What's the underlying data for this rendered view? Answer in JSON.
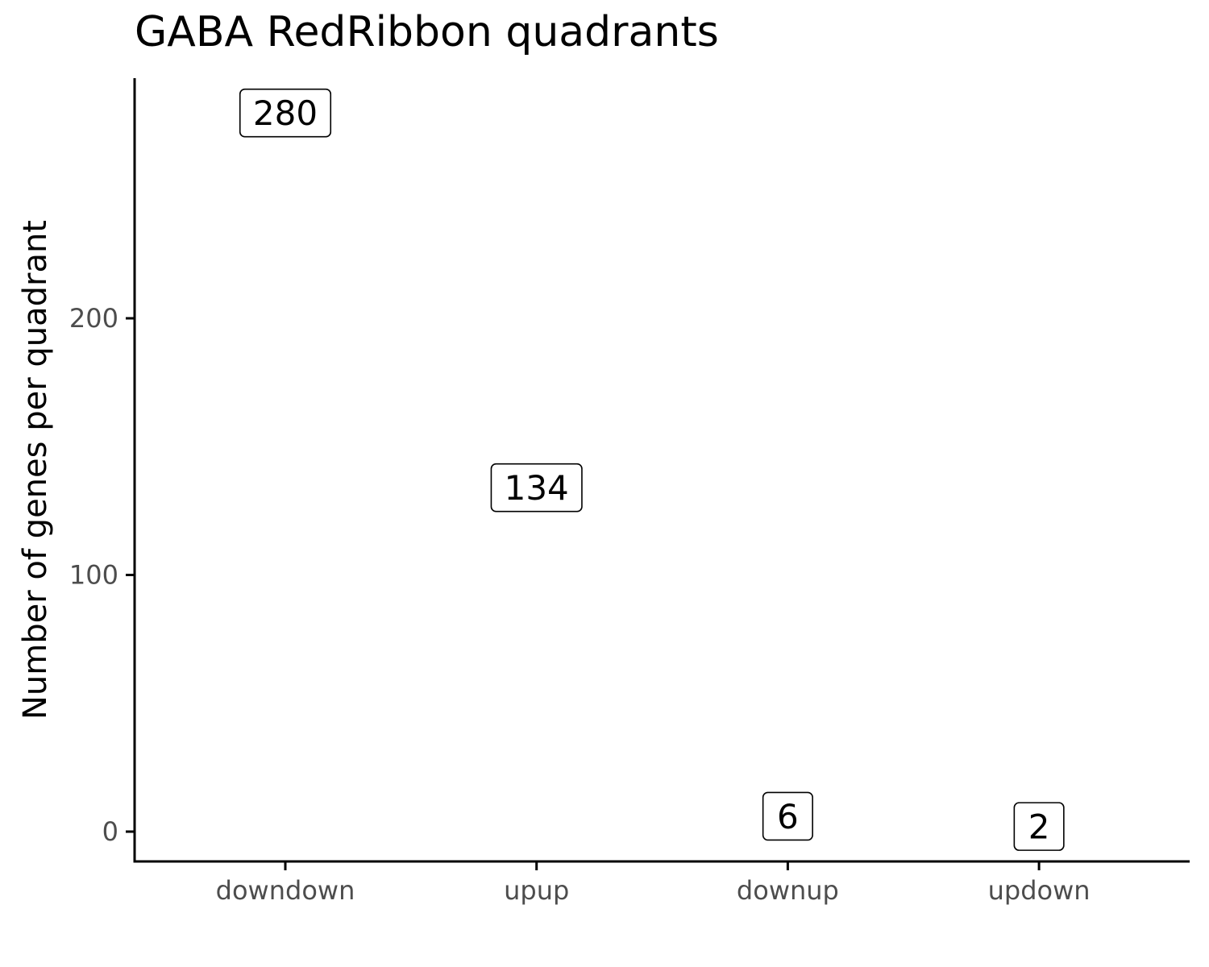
{
  "chart_data": {
    "type": "scatter",
    "title": "GABA RedRibbon quadrants",
    "xlabel": "",
    "ylabel": "Number of genes per quadrant",
    "categories": [
      "downdown",
      "upup",
      "downup",
      "updown"
    ],
    "values": [
      280,
      134,
      6,
      2
    ],
    "labels": [
      "280",
      "134",
      "6",
      "2"
    ],
    "ylim": [
      -12,
      294
    ],
    "yticks": [
      0,
      100,
      200
    ],
    "grid": false,
    "legend": "none",
    "colors": {
      "axis": "#000000",
      "tick_text": "#4d4d4d",
      "label_border": "#000000",
      "label_fill": "#ffffff"
    }
  }
}
